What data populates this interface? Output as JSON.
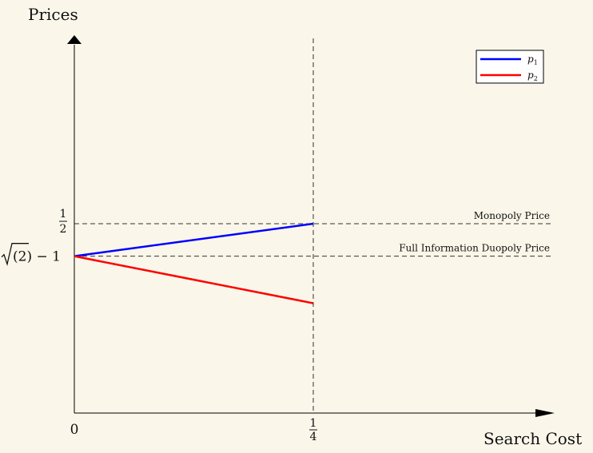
{
  "chart_data": {
    "type": "line",
    "title": "",
    "xlabel": "Search Cost",
    "ylabel": "Prices",
    "xlim": [
      0,
      0.5
    ],
    "ylim": [
      0,
      0.95
    ],
    "x_ticks": [
      {
        "value": 0,
        "label": "0"
      },
      {
        "value": 0.25,
        "num": "1",
        "den": "4"
      }
    ],
    "y_ticks": [
      {
        "value": 0.5,
        "num": "1",
        "den": "2"
      },
      {
        "value": 0.41421356,
        "sqrt_text": "(2) − 1"
      }
    ],
    "series": [
      {
        "name": "p1",
        "name_base": "p",
        "name_sub": "1",
        "color": "#0000ff",
        "x": [
          0,
          0.25
        ],
        "y": [
          0.41421356,
          0.5
        ]
      },
      {
        "name": "p2",
        "name_base": "p",
        "name_sub": "2",
        "color": "#ff0000",
        "x": [
          0,
          0.25
        ],
        "y": [
          0.41421356,
          0.29
        ]
      }
    ],
    "reference_lines": [
      {
        "orientation": "horizontal",
        "value": 0.5,
        "label": "Monopoly Price"
      },
      {
        "orientation": "horizontal",
        "value": 0.41421356,
        "label": "Full Information Duopoly Price"
      },
      {
        "orientation": "vertical",
        "value": 0.25,
        "label": ""
      }
    ],
    "grid": false,
    "legend_position": "top-right"
  }
}
